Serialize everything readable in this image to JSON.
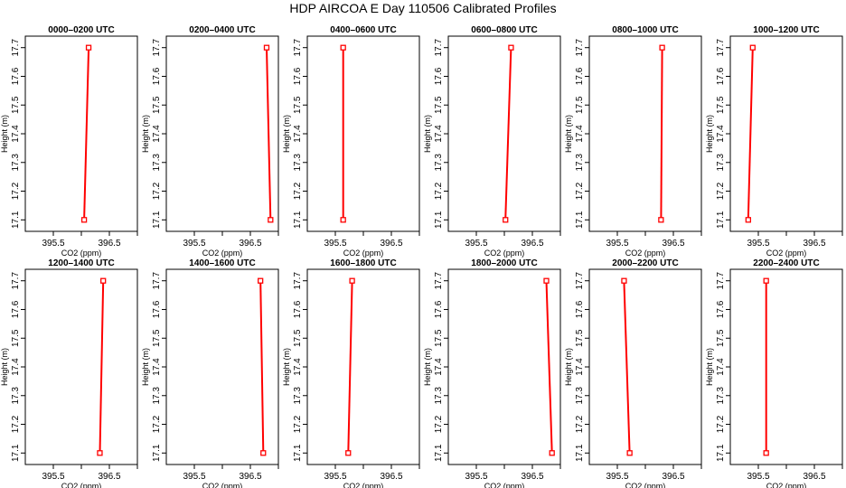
{
  "title": "HDP AIRCOA E  Day 110506  Calibrated Profiles",
  "colors": {
    "profile_line": "#ff0000",
    "marker": "#ff0000",
    "axis": "#000000"
  },
  "chart_data": [
    {
      "type": "line",
      "title": "0000–0200 UTC",
      "xlabel": "CO2 (ppm)",
      "ylabel": "Height (m)",
      "xlim": [
        395.0,
        397.0
      ],
      "ylim": [
        17.06,
        17.74
      ],
      "xticks": [
        "395.5",
        "396.5"
      ],
      "yticks": [
        "17.1",
        "17.2",
        "17.3",
        "17.4",
        "17.5",
        "17.6",
        "17.7"
      ],
      "x": [
        396.05,
        396.13
      ],
      "y": [
        17.1,
        17.7
      ]
    },
    {
      "type": "line",
      "title": "0200–0400 UTC",
      "xlabel": "CO2 (ppm)",
      "ylabel": "Height (m)",
      "xlim": [
        395.0,
        397.0
      ],
      "ylim": [
        17.06,
        17.74
      ],
      "xticks": [
        "395.5",
        "396.5"
      ],
      "yticks": [
        "17.1",
        "17.2",
        "17.3",
        "17.4",
        "17.5",
        "17.6",
        "17.7"
      ],
      "x": [
        396.86,
        396.79
      ],
      "y": [
        17.1,
        17.7
      ]
    },
    {
      "type": "line",
      "title": "0400–0600 UTC",
      "xlabel": "CO2 (ppm)",
      "ylabel": "Height (m)",
      "xlim": [
        395.0,
        397.0
      ],
      "ylim": [
        17.06,
        17.74
      ],
      "xticks": [
        "395.5",
        "396.5"
      ],
      "yticks": [
        "17.1",
        "17.2",
        "17.3",
        "17.4",
        "17.5",
        "17.6",
        "17.7"
      ],
      "x": [
        395.64,
        395.64
      ],
      "y": [
        17.1,
        17.7
      ]
    },
    {
      "type": "line",
      "title": "0600–0800 UTC",
      "xlabel": "CO2 (ppm)",
      "ylabel": "Height (m)",
      "xlim": [
        395.0,
        397.0
      ],
      "ylim": [
        17.06,
        17.74
      ],
      "xticks": [
        "395.5",
        "396.5"
      ],
      "yticks": [
        "17.1",
        "17.2",
        "17.3",
        "17.4",
        "17.5",
        "17.6",
        "17.7"
      ],
      "x": [
        396.02,
        396.12
      ],
      "y": [
        17.1,
        17.7
      ]
    },
    {
      "type": "line",
      "title": "0800–1000 UTC",
      "xlabel": "CO2 (ppm)",
      "ylabel": "Height (m)",
      "xlim": [
        395.0,
        397.0
      ],
      "ylim": [
        17.06,
        17.74
      ],
      "xticks": [
        "395.5",
        "396.5"
      ],
      "yticks": [
        "17.1",
        "17.2",
        "17.3",
        "17.4",
        "17.5",
        "17.6",
        "17.7"
      ],
      "x": [
        396.28,
        396.3
      ],
      "y": [
        17.1,
        17.7
      ]
    },
    {
      "type": "line",
      "title": "1000–1200 UTC",
      "xlabel": "CO2 (ppm)",
      "ylabel": "Height (m)",
      "xlim": [
        395.0,
        397.0
      ],
      "ylim": [
        17.06,
        17.74
      ],
      "xticks": [
        "395.5",
        "396.5"
      ],
      "yticks": [
        "17.1",
        "17.2",
        "17.3",
        "17.4",
        "17.5",
        "17.6",
        "17.7"
      ],
      "x": [
        395.32,
        395.4
      ],
      "y": [
        17.1,
        17.7
      ]
    },
    {
      "type": "line",
      "title": "1200–1400 UTC",
      "xlabel": "CO2 (ppm)",
      "ylabel": "Height (m)",
      "xlim": [
        395.0,
        397.0
      ],
      "ylim": [
        17.06,
        17.74
      ],
      "xticks": [
        "395.5",
        "396.5"
      ],
      "yticks": [
        "17.1",
        "17.2",
        "17.3",
        "17.4",
        "17.5",
        "17.6",
        "17.7"
      ],
      "x": [
        396.33,
        396.39
      ],
      "y": [
        17.1,
        17.7
      ]
    },
    {
      "type": "line",
      "title": "1400–1600 UTC",
      "xlabel": "CO2 (ppm)",
      "ylabel": "Height (m)",
      "xlim": [
        395.0,
        397.0
      ],
      "ylim": [
        17.06,
        17.74
      ],
      "xticks": [
        "395.5",
        "396.5"
      ],
      "yticks": [
        "17.1",
        "17.2",
        "17.3",
        "17.4",
        "17.5",
        "17.6",
        "17.7"
      ],
      "x": [
        396.73,
        396.68
      ],
      "y": [
        17.1,
        17.7
      ]
    },
    {
      "type": "line",
      "title": "1600–1800 UTC",
      "xlabel": "CO2 (ppm)",
      "ylabel": "Height (m)",
      "xlim": [
        395.0,
        397.0
      ],
      "ylim": [
        17.06,
        17.74
      ],
      "xticks": [
        "395.5",
        "396.5"
      ],
      "yticks": [
        "17.1",
        "17.2",
        "17.3",
        "17.4",
        "17.5",
        "17.6",
        "17.7"
      ],
      "x": [
        395.73,
        395.8
      ],
      "y": [
        17.1,
        17.7
      ]
    },
    {
      "type": "line",
      "title": "1800–2000 UTC",
      "xlabel": "CO2 (ppm)",
      "ylabel": "Height (m)",
      "xlim": [
        395.0,
        397.0
      ],
      "ylim": [
        17.06,
        17.74
      ],
      "xticks": [
        "395.5",
        "396.5"
      ],
      "yticks": [
        "17.1",
        "17.2",
        "17.3",
        "17.4",
        "17.5",
        "17.6",
        "17.7"
      ],
      "x": [
        396.85,
        396.75
      ],
      "y": [
        17.1,
        17.7
      ]
    },
    {
      "type": "line",
      "title": "2000–2200 UTC",
      "xlabel": "CO2 (ppm)",
      "ylabel": "Height (m)",
      "xlim": [
        395.0,
        397.0
      ],
      "ylim": [
        17.06,
        17.74
      ],
      "xticks": [
        "395.5",
        "396.5"
      ],
      "yticks": [
        "17.1",
        "17.2",
        "17.3",
        "17.4",
        "17.5",
        "17.6",
        "17.7"
      ],
      "x": [
        395.72,
        395.62
      ],
      "y": [
        17.1,
        17.7
      ]
    },
    {
      "type": "line",
      "title": "2200–2400 UTC",
      "xlabel": "CO2 (ppm)",
      "ylabel": "Height (m)",
      "xlim": [
        395.0,
        397.0
      ],
      "ylim": [
        17.06,
        17.74
      ],
      "xticks": [
        "395.5",
        "396.5"
      ],
      "yticks": [
        "17.1",
        "17.2",
        "17.3",
        "17.4",
        "17.5",
        "17.6",
        "17.7"
      ],
      "x": [
        395.64,
        395.64
      ],
      "y": [
        17.1,
        17.7
      ]
    }
  ]
}
